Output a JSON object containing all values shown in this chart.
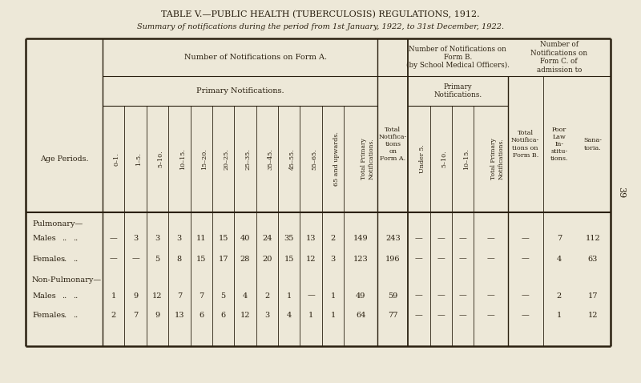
{
  "title": "TABLE V.—PUBLIC HEALTH (TUBERCULOSIS) REGULATIONS, 1912.",
  "subtitle": "Summary of notifications during the period from 1st January, 1922, to 31st December, 1922.",
  "bg_color": "#ede8d8",
  "text_color": "#2a2010",
  "page_number": "39",
  "row_groups": [
    {
      "group": "Pulmonary—",
      "rows": [
        {
          "label": "Males",
          "form_a_primary": [
            "—",
            "3",
            "3",
            "3",
            "11",
            "15",
            "40",
            "24",
            "35",
            "13",
            "2",
            "149"
          ],
          "total_form_a": "243",
          "form_b_primary": [
            "—",
            "—",
            "—",
            "—"
          ],
          "total_form_b": "—",
          "poor_law": "7",
          "sanatoria": "112"
        },
        {
          "label": "Females",
          "form_a_primary": [
            "—",
            "—",
            "5",
            "8",
            "15",
            "17",
            "28",
            "20",
            "15",
            "12",
            "3",
            "123"
          ],
          "total_form_a": "196",
          "form_b_primary": [
            "—",
            "—",
            "—",
            "—"
          ],
          "total_form_b": "—",
          "poor_law": "4",
          "sanatoria": "63"
        }
      ]
    },
    {
      "group": "Non-Pulmonary—",
      "rows": [
        {
          "label": "Males",
          "form_a_primary": [
            "1",
            "9",
            "12",
            "7",
            "7",
            "5",
            "4",
            "2",
            "1",
            "—",
            "1",
            "49"
          ],
          "total_form_a": "59",
          "form_b_primary": [
            "—",
            "—",
            "—",
            "—"
          ],
          "total_form_b": "—",
          "poor_law": "2",
          "sanatoria": "17"
        },
        {
          "label": "Females",
          "form_a_primary": [
            "2",
            "7",
            "9",
            "13",
            "6",
            "6",
            "12",
            "3",
            "4",
            "1",
            "1",
            "64"
          ],
          "total_form_a": "77",
          "form_b_primary": [
            "—",
            "—",
            "—",
            "—"
          ],
          "total_form_b": "—",
          "poor_law": "1",
          "sanatoria": "12"
        }
      ]
    }
  ]
}
